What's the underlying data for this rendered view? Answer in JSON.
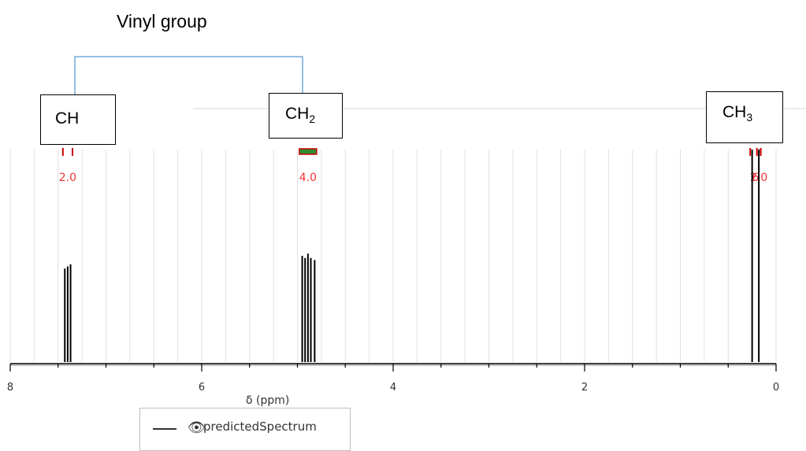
{
  "annotations": {
    "group_label": "Vinyl group",
    "boxes": [
      {
        "label": "CH",
        "sub": ""
      },
      {
        "label": "CH",
        "sub": "2"
      },
      {
        "label": "CH",
        "sub": "3"
      }
    ]
  },
  "legend": {
    "series_label": "predictedSpectrum",
    "icon": "eye-icon"
  },
  "colors": {
    "peaks": "#000000",
    "integration_bar": "#2e8b2e",
    "integration_outline": "#cc0000",
    "integration_text": "#ee3333",
    "bracket": "#5b9bd5",
    "grid": "#e0e0e0"
  },
  "chart_data": {
    "type": "line",
    "xlabel": "δ (ppm)",
    "ylabel": "",
    "xlim": [
      8,
      0
    ],
    "x_reversed": true,
    "x_ticks": [
      8,
      6,
      4,
      2,
      0
    ],
    "x_tick_labels": [
      "8",
      "6",
      "4",
      "2",
      "0"
    ],
    "grid": true,
    "series": [
      {
        "name": "predictedSpectrum",
        "peaks": [
          {
            "ppm": 7.43,
            "intensity": 0.44
          },
          {
            "ppm": 7.4,
            "intensity": 0.45
          },
          {
            "ppm": 7.37,
            "intensity": 0.46
          },
          {
            "ppm": 4.95,
            "intensity": 0.5
          },
          {
            "ppm": 4.92,
            "intensity": 0.49
          },
          {
            "ppm": 4.89,
            "intensity": 0.51
          },
          {
            "ppm": 4.86,
            "intensity": 0.49
          },
          {
            "ppm": 4.82,
            "intensity": 0.48
          },
          {
            "ppm": 0.25,
            "intensity": 1.0
          },
          {
            "ppm": 0.18,
            "intensity": 1.0
          }
        ]
      }
    ],
    "integrations": [
      {
        "ppm_start": 7.45,
        "ppm_end": 7.35,
        "value": "2.0"
      },
      {
        "ppm_start": 4.98,
        "ppm_end": 4.8,
        "value": "4.0"
      },
      {
        "ppm_start": 0.27,
        "ppm_end": 0.16,
        "value": "6"
      },
      {
        "ppm_start": 0.2,
        "ppm_end": 0.16,
        "value": "2.0"
      }
    ]
  }
}
